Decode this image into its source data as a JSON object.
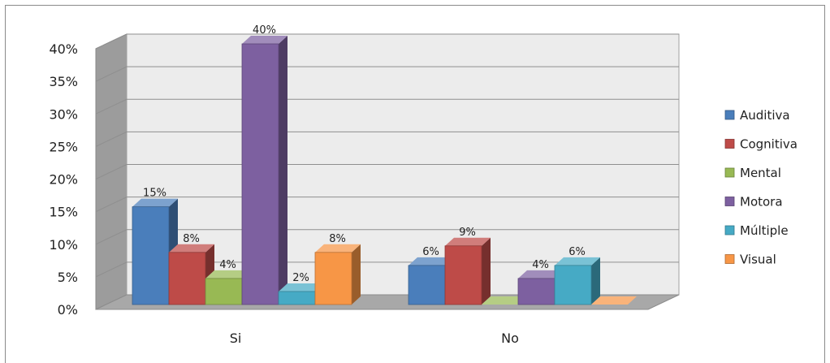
{
  "chart_data": {
    "type": "bar",
    "title": "",
    "xlabel": "",
    "ylabel": "",
    "ylim": [
      0,
      40
    ],
    "yticks": [
      "0%",
      "5%",
      "10%",
      "15%",
      "20%",
      "25%",
      "30%",
      "35%",
      "40%"
    ],
    "grid": true,
    "legend_position": "right",
    "categories": [
      "Si",
      "No"
    ],
    "series": [
      {
        "name": "Auditiva",
        "color": "#4a7ebb",
        "values": [
          15,
          6
        ],
        "labels": [
          "15%",
          "6%"
        ]
      },
      {
        "name": "Cognitiva",
        "color": "#be4b48",
        "values": [
          8,
          9
        ],
        "labels": [
          "8%",
          "9%"
        ]
      },
      {
        "name": "Mental",
        "color": "#98b954",
        "values": [
          4,
          0
        ],
        "labels": [
          "4%",
          ""
        ]
      },
      {
        "name": "Motora",
        "color": "#7d60a0",
        "values": [
          40,
          4
        ],
        "labels": [
          "40%",
          "4%"
        ]
      },
      {
        "name": "Múltiple",
        "color": "#46aac5",
        "values": [
          2,
          6
        ],
        "labels": [
          "2%",
          "6%"
        ]
      },
      {
        "name": "Visual",
        "color": "#f79646",
        "values": [
          8,
          0
        ],
        "labels": [
          "8%",
          ""
        ]
      }
    ]
  }
}
